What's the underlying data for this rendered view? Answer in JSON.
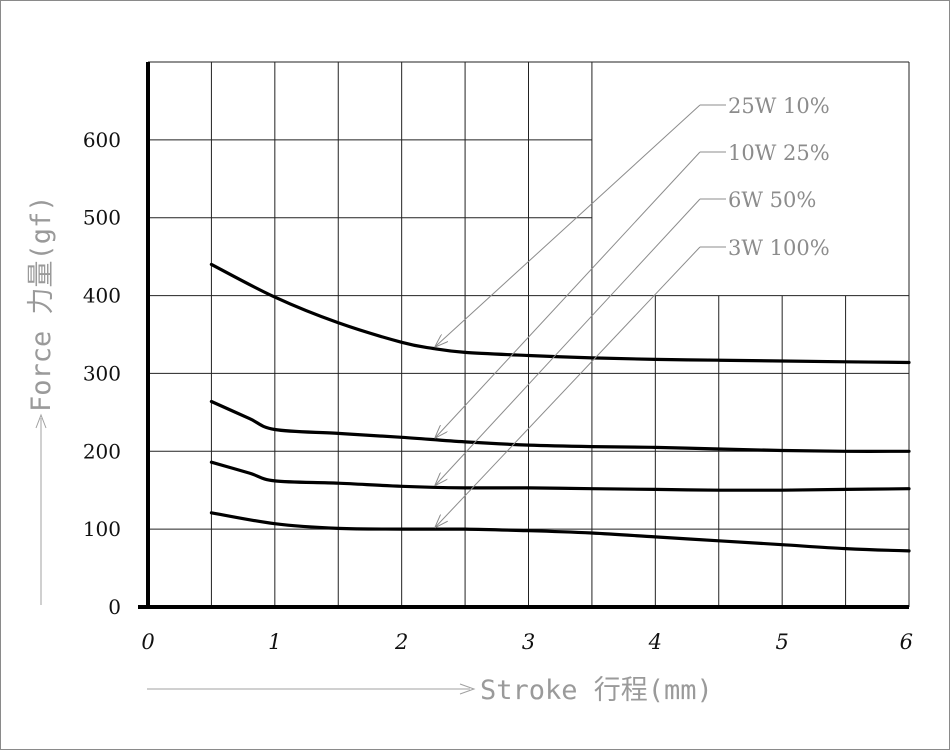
{
  "chart_data": {
    "type": "line",
    "xlabel": "Stroke 行程(mm)",
    "ylabel": "Force 力量(gf)",
    "xlim": [
      0,
      6
    ],
    "ylim": [
      0,
      700
    ],
    "x_ticks": [
      "0",
      "1",
      "2",
      "3",
      "4",
      "5",
      "6"
    ],
    "y_ticks": [
      "0",
      "100",
      "200",
      "300",
      "400",
      "500",
      "600"
    ],
    "grid": true,
    "legend_placement": "top-right, with leader arrows pointing to each curve",
    "series": [
      {
        "name": "25W 10%",
        "x": [
          0.5,
          1.0,
          1.5,
          2.0,
          2.25,
          2.5,
          3.0,
          3.5,
          4.0,
          4.5,
          5.0,
          5.5,
          6.0
        ],
        "y": [
          440,
          398,
          365,
          340,
          332,
          327,
          323,
          320,
          318,
          317,
          316,
          315,
          314
        ]
      },
      {
        "name": "10W 25%",
        "x": [
          0.5,
          0.8,
          1.0,
          1.5,
          2.0,
          2.5,
          3.0,
          3.5,
          4.0,
          4.5,
          5.0,
          5.5,
          6.0
        ],
        "y": [
          264,
          242,
          228,
          223,
          218,
          212,
          208,
          206,
          205,
          203,
          201,
          200,
          200
        ]
      },
      {
        "name": "6W 50%",
        "x": [
          0.5,
          0.8,
          1.0,
          1.5,
          2.0,
          2.5,
          3.0,
          3.5,
          4.0,
          4.5,
          5.0,
          5.5,
          6.0
        ],
        "y": [
          186,
          172,
          162,
          159,
          155,
          153,
          153,
          152,
          151,
          150,
          150,
          151,
          152
        ]
      },
      {
        "name": "3W 100%",
        "x": [
          0.5,
          1.0,
          1.5,
          2.0,
          2.5,
          3.0,
          3.5,
          4.0,
          4.5,
          5.0,
          5.5,
          6.0
        ],
        "y": [
          121,
          107,
          101,
          100,
          100,
          98,
          95,
          90,
          85,
          80,
          75,
          72
        ]
      }
    ]
  }
}
